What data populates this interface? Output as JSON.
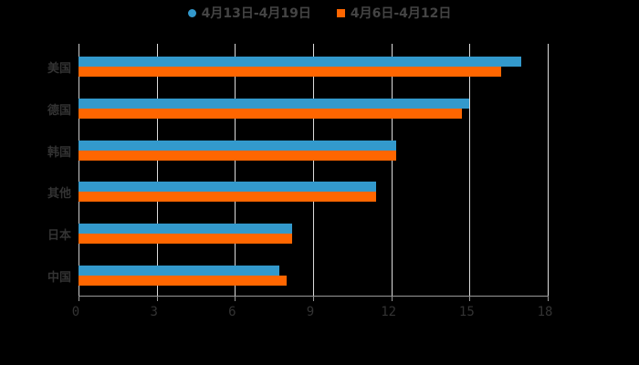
{
  "chart_data": {
    "type": "bar",
    "orientation": "horizontal",
    "title": "",
    "xlabel": "",
    "ylabel": "",
    "categories": [
      "美国",
      "德国",
      "韩国",
      "其他",
      "日本",
      "中国"
    ],
    "series": [
      {
        "name": "4月13日-4月19日",
        "color": "#3399cc",
        "values": [
          17.0,
          15.0,
          12.2,
          11.4,
          8.2,
          7.7
        ]
      },
      {
        "name": "4月6日-4月12日",
        "color": "#ff6600",
        "values": [
          16.2,
          14.7,
          12.2,
          11.4,
          8.2,
          8.0
        ]
      }
    ],
    "xlim": [
      0,
      18
    ],
    "xticks": [
      "0",
      "3",
      "6",
      "9",
      "12",
      "15",
      "18"
    ],
    "grid": true,
    "legend_position": "top"
  },
  "legend": {
    "series1": "4月13日-4月19日",
    "series2": "4月6日-4月12日"
  }
}
